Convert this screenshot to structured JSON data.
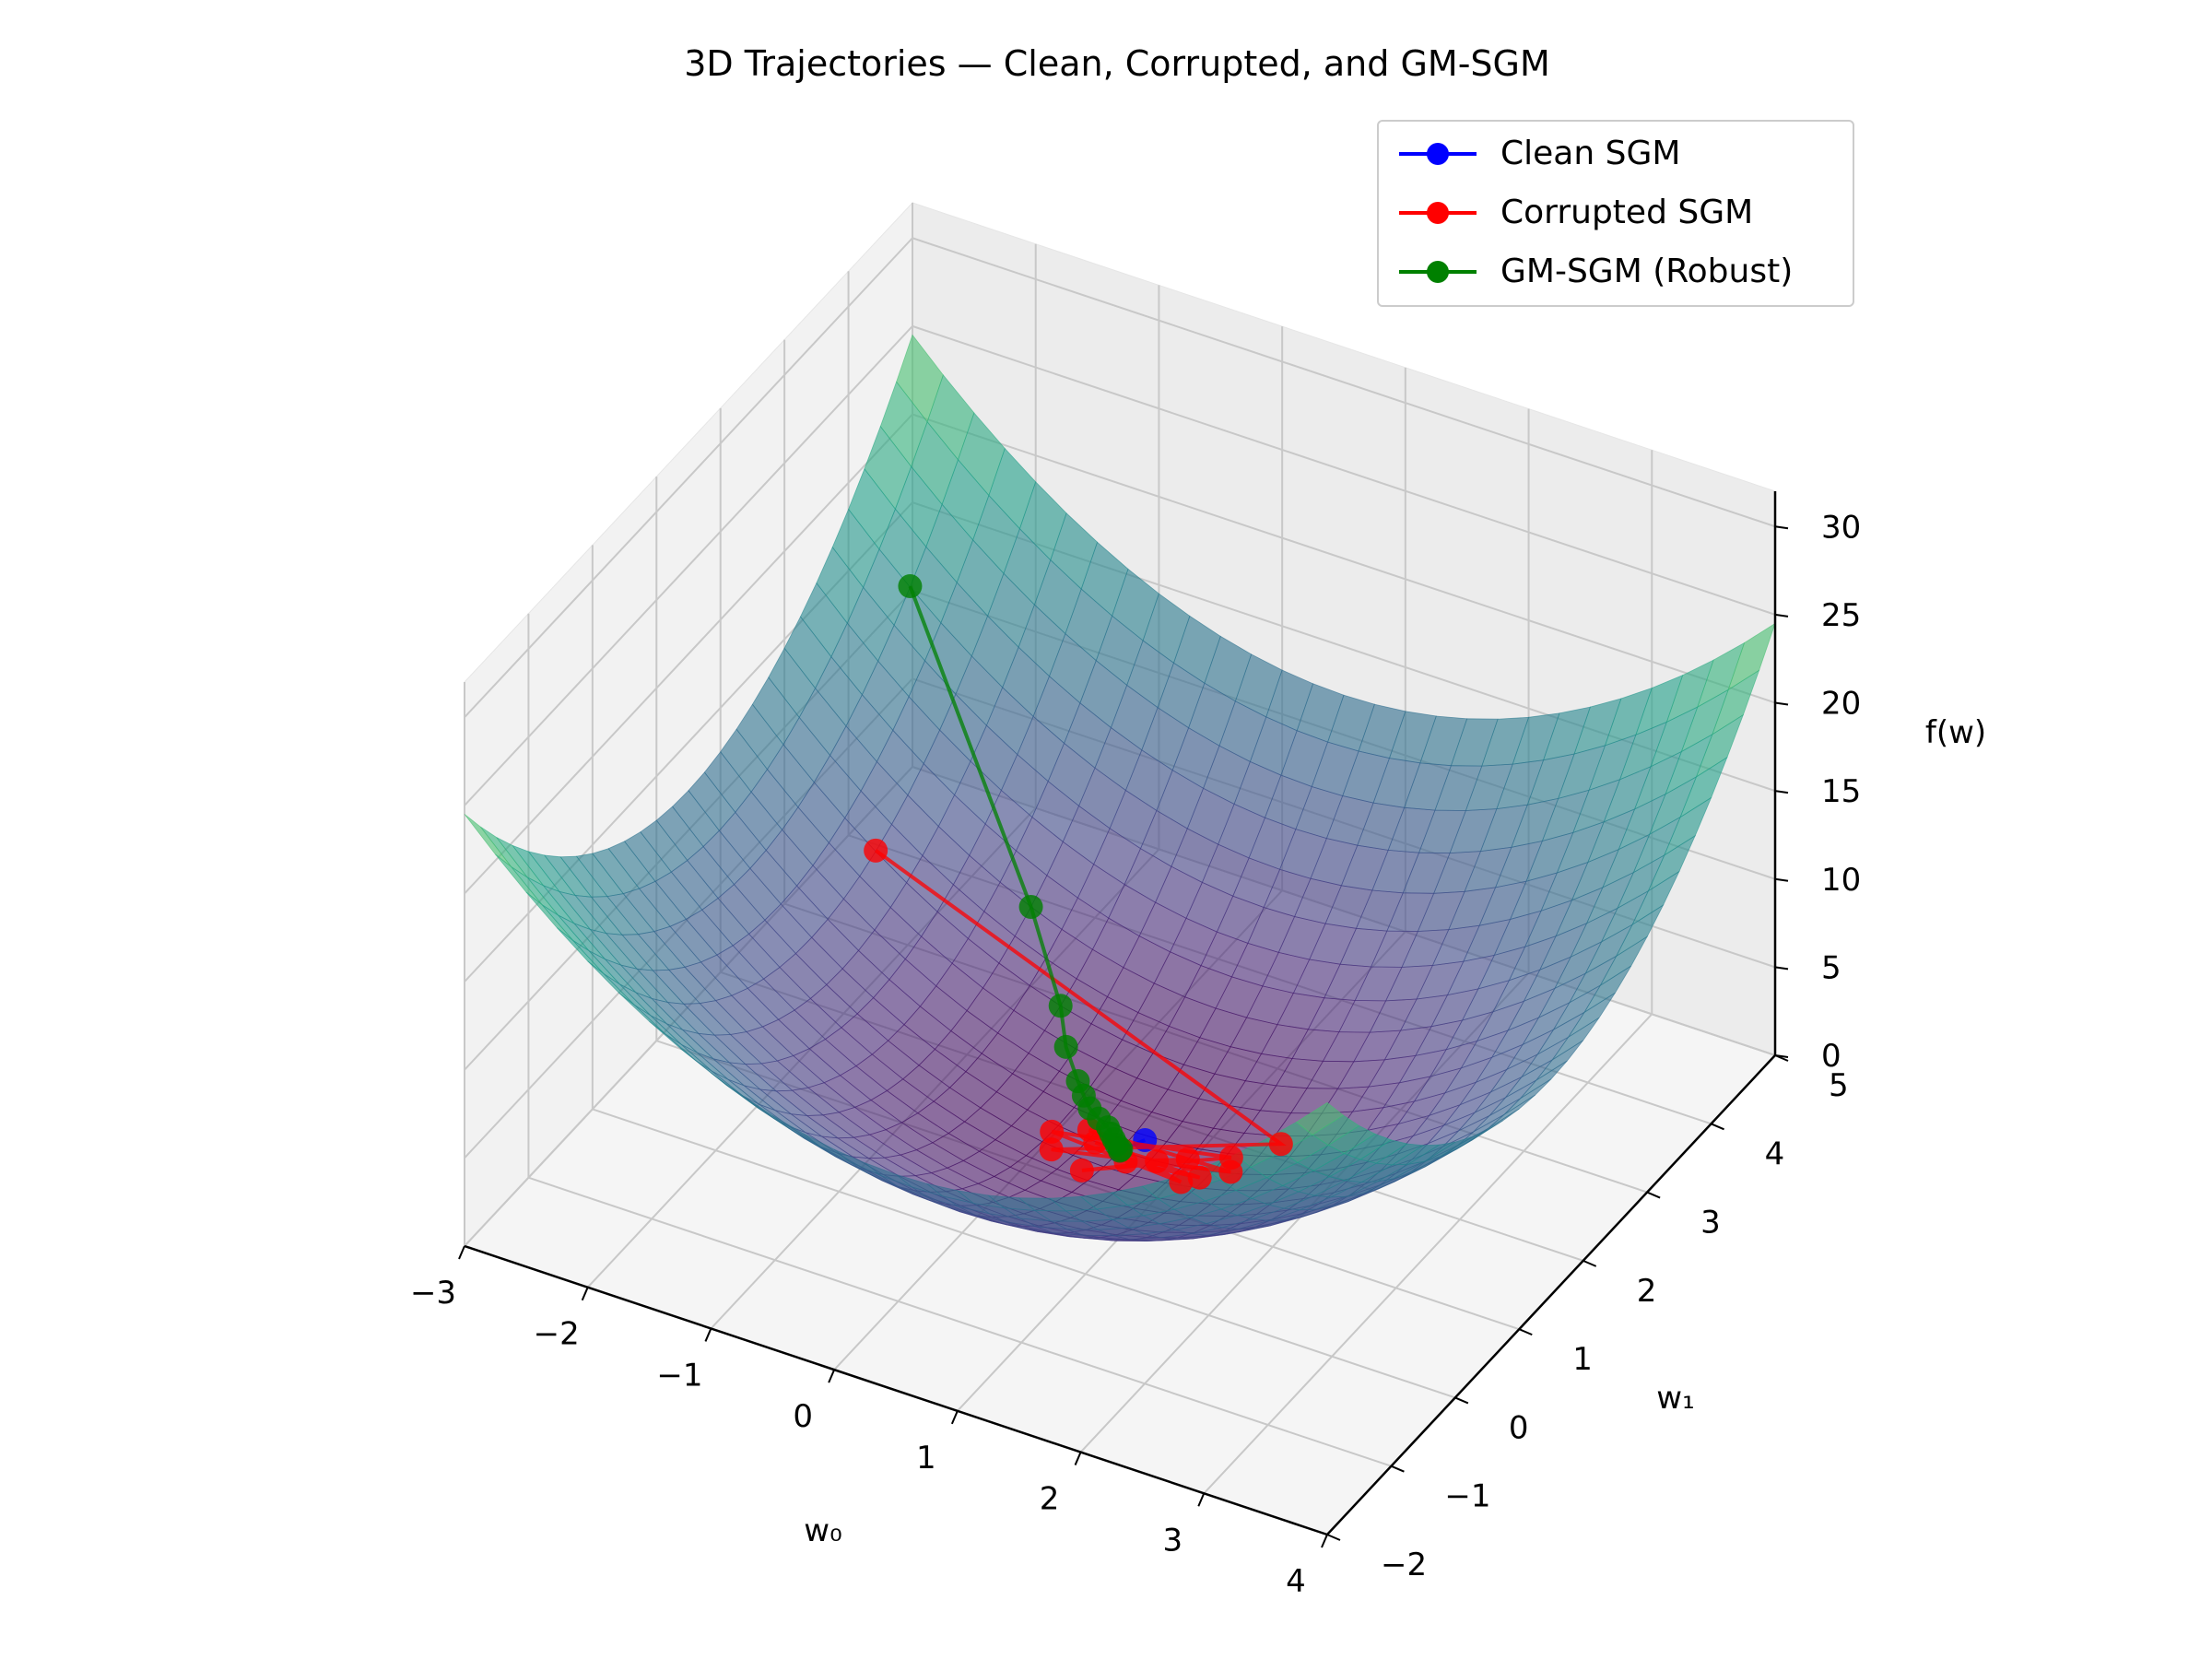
{
  "chart_data": {
    "type": "surface3d",
    "title": "3D Trajectories — Clean, Corrupted, and GM-SGM",
    "xlabel": "w₀",
    "ylabel": "w₁",
    "zlabel": "f(w)",
    "x_ticks": [
      "−3",
      "−2",
      "−1",
      "0",
      "1",
      "2",
      "3",
      "4"
    ],
    "y_ticks": [
      "−2",
      "−1",
      "0",
      "1",
      "2",
      "3",
      "4",
      "5"
    ],
    "z_ticks": [
      "0",
      "5",
      "10",
      "15",
      "20",
      "25",
      "30"
    ],
    "xlim": [
      -3,
      4
    ],
    "ylim": [
      -2,
      5
    ],
    "zlim": [
      0,
      32
    ],
    "grid": true,
    "legend_position": "top-right",
    "colormap": "viridis",
    "surface_function": "(w0 - 0.5)^2 + (w1 - 1.5)^2",
    "series": [
      {
        "name": "Clean SGM",
        "color": "#0000ff",
        "points": [
          [
            0.6,
            1.7,
            0.06
          ],
          [
            0.5,
            1.5,
            0.0
          ]
        ]
      },
      {
        "name": "Corrupted SGM",
        "color": "#ff0000",
        "points": [
          [
            -2.0,
            2.5,
            7.3
          ],
          [
            1.6,
            1.9,
            1.4
          ],
          [
            0.1,
            1.2,
            0.3
          ],
          [
            1.4,
            1.5,
            0.9
          ],
          [
            0.2,
            1.6,
            0.1
          ],
          [
            1.1,
            1.3,
            0.4
          ],
          [
            0.0,
            1.4,
            0.3
          ],
          [
            1.3,
            1.7,
            0.7
          ],
          [
            0.4,
            1.1,
            0.2
          ],
          [
            1.0,
            1.6,
            0.3
          ],
          [
            0.6,
            1.4,
            0.0
          ],
          [
            1.2,
            1.4,
            0.5
          ],
          [
            0.3,
            1.5,
            0.0
          ],
          [
            0.8,
            1.5,
            0.1
          ]
        ]
      },
      {
        "name": "GM-SGM (Robust)",
        "color": "#008000",
        "points": [
          [
            -2.5,
            4.0,
            15.3
          ],
          [
            -1.0,
            3.0,
            4.5
          ],
          [
            -0.5,
            2.5,
            2.0
          ],
          [
            -0.3,
            2.2,
            1.3
          ],
          [
            -0.1,
            2.0,
            0.6
          ],
          [
            0.0,
            1.9,
            0.4
          ],
          [
            0.1,
            1.8,
            0.3
          ],
          [
            0.2,
            1.75,
            0.15
          ],
          [
            0.3,
            1.7,
            0.08
          ],
          [
            0.35,
            1.65,
            0.04
          ],
          [
            0.4,
            1.6,
            0.02
          ],
          [
            0.45,
            1.55,
            0.01
          ],
          [
            0.5,
            1.52,
            0.0
          ],
          [
            0.5,
            1.5,
            0.0
          ]
        ]
      }
    ]
  }
}
